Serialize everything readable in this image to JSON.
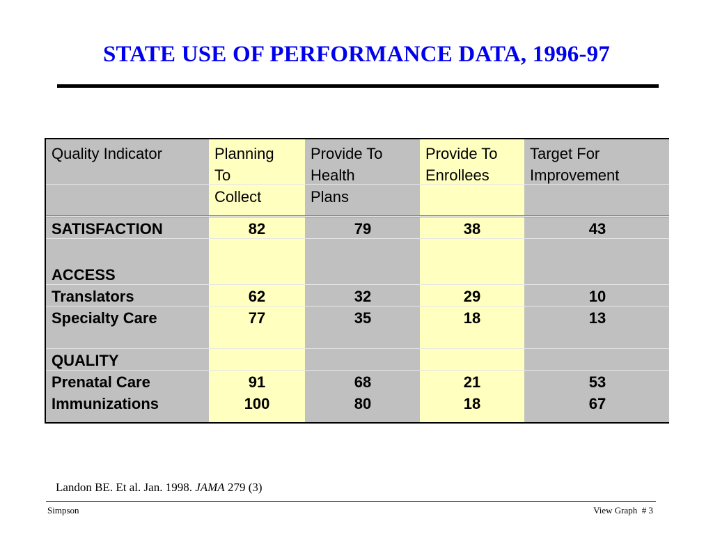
{
  "title": "STATE USE OF PERFORMANCE DATA, 1996-97",
  "table": {
    "headers": [
      [
        "Quality Indicator"
      ],
      [
        "Planning",
        "To",
        "Collect"
      ],
      [
        "Provide To",
        "Health",
        "Plans"
      ],
      [
        "Provide To",
        "Enrollees"
      ],
      [
        "Target For",
        "Improvement"
      ]
    ],
    "rows": [
      {
        "label": "SATISFACTION",
        "values": [
          "82",
          "79",
          "38",
          "43"
        ]
      },
      {
        "label": "ACCESS",
        "values": [
          "",
          "",
          "",
          ""
        ]
      },
      {
        "label": "Translators",
        "values": [
          "62",
          "32",
          "29",
          "10"
        ]
      },
      {
        "label": "Specialty Care",
        "values": [
          "77",
          "35",
          "18",
          "13"
        ]
      },
      {
        "label": "QUALITY",
        "values": [
          "",
          "",
          "",
          ""
        ]
      },
      {
        "label": "Prenatal Care",
        "values": [
          "91",
          "68",
          "21",
          "53"
        ]
      },
      {
        "label": "Immunizations",
        "values": [
          "100",
          "80",
          "18",
          "67"
        ]
      }
    ]
  },
  "source": {
    "prefix": "Landon BE. Et al. Jan. 1998. ",
    "journal": "JAMA",
    "suffix": " 279 (3)"
  },
  "footer": {
    "left": "Simpson",
    "right": "View Graph  # 3"
  }
}
